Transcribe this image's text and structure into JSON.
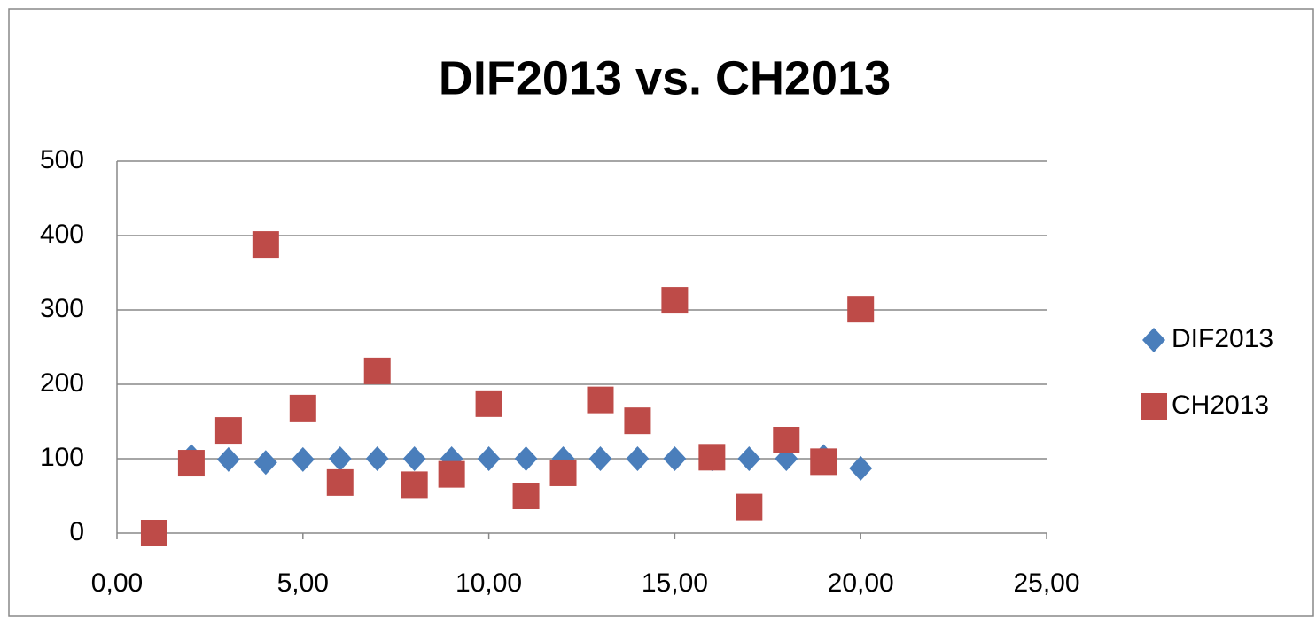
{
  "chart_data": {
    "type": "scatter",
    "title": "DIF2013 vs. CH2013",
    "series": [
      {
        "name": "DIF2013",
        "color": "#4a7ebb",
        "marker": "diamond",
        "x": [
          2,
          3,
          4,
          5,
          6,
          7,
          8,
          9,
          10,
          11,
          12,
          13,
          14,
          15,
          16,
          17,
          18,
          19,
          20
        ],
        "values": [
          103,
          99,
          95,
          99,
          100,
          100,
          100,
          100,
          100,
          100,
          100,
          100,
          100,
          100,
          100,
          100,
          100,
          103,
          87
        ]
      },
      {
        "name": "CH2013",
        "color": "#be4b48",
        "marker": "square",
        "x": [
          1,
          2,
          3,
          4,
          5,
          6,
          7,
          8,
          9,
          10,
          11,
          12,
          13,
          14,
          15,
          16,
          17,
          18,
          19,
          20
        ],
        "values": [
          0,
          94,
          138,
          388,
          168,
          68,
          218,
          65,
          79,
          174,
          50,
          81,
          179,
          151,
          313,
          102,
          35,
          125,
          96,
          301
        ]
      }
    ],
    "xlim": [
      0,
      25
    ],
    "xticks": [
      {
        "value": 0,
        "label": "0,00"
      },
      {
        "value": 5,
        "label": "5,00"
      },
      {
        "value": 10,
        "label": "10,00"
      },
      {
        "value": 15,
        "label": "15,00"
      },
      {
        "value": 20,
        "label": "20,00"
      },
      {
        "value": 25,
        "label": "25,00"
      }
    ],
    "ylim": [
      0,
      500
    ],
    "yticks": [
      0,
      100,
      200,
      300,
      400,
      500
    ],
    "grid": true,
    "legend": "right"
  }
}
